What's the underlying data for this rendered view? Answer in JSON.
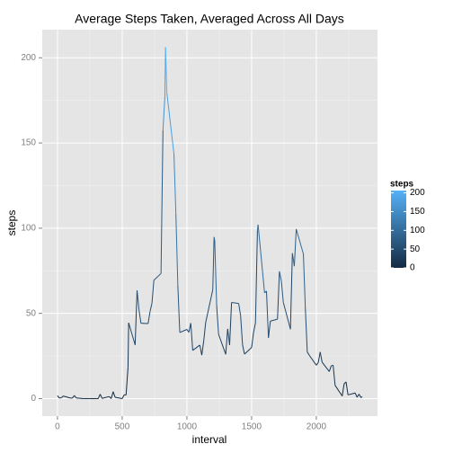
{
  "chart_data": {
    "type": "line",
    "title": "Average Steps Taken, Averaged Across All Days",
    "x_label": "interval",
    "y_label": "steps",
    "x": [
      0,
      15,
      30,
      45,
      100,
      115,
      130,
      145,
      200,
      215,
      230,
      245,
      300,
      315,
      330,
      345,
      400,
      415,
      430,
      445,
      500,
      515,
      530,
      545,
      550,
      600,
      615,
      630,
      645,
      700,
      715,
      730,
      745,
      800,
      815,
      830,
      835,
      845,
      900,
      915,
      930,
      945,
      1000,
      1015,
      1030,
      1045,
      1100,
      1115,
      1130,
      1145,
      1200,
      1210,
      1215,
      1230,
      1245,
      1300,
      1315,
      1330,
      1345,
      1400,
      1415,
      1430,
      1445,
      1500,
      1515,
      1530,
      1545,
      1550,
      1600,
      1615,
      1630,
      1645,
      1700,
      1715,
      1730,
      1745,
      1800,
      1815,
      1830,
      1845,
      1900,
      1915,
      1930,
      1945,
      2000,
      2015,
      2030,
      2045,
      2100,
      2115,
      2130,
      2145,
      2200,
      2215,
      2230,
      2245,
      2300,
      2315,
      2330,
      2345,
      2355
    ],
    "values": [
      1.7,
      0.3,
      0.5,
      1.5,
      0.3,
      0.3,
      1.8,
      0.4,
      0,
      0,
      0,
      0,
      0,
      0,
      2.6,
      0.1,
      1.2,
      0,
      4.1,
      0.8,
      0,
      2.2,
      2.1,
      18.3,
      44.5,
      31.5,
      63.5,
      52,
      44.2,
      44,
      51,
      56,
      69.5,
      73.4,
      157.5,
      177.3,
      206.2,
      179.6,
      143.5,
      108.1,
      66.2,
      38.8,
      40.6,
      38.9,
      44.3,
      28.3,
      31.4,
      25.5,
      33.8,
      44.6,
      63.9,
      94.8,
      92.8,
      54.5,
      37.7,
      26,
      40.9,
      31.4,
      56.4,
      55.8,
      48.7,
      31.5,
      26.1,
      30,
      38.8,
      44.5,
      98.7,
      102.1,
      62.1,
      63.1,
      35.7,
      45.5,
      46.6,
      74.7,
      68.9,
      56.5,
      40.7,
      85.3,
      77.7,
      99.5,
      84.9,
      53.4,
      27.4,
      25.5,
      19.6,
      21.2,
      27.3,
      21.3,
      15.9,
      19.2,
      19.6,
      7.8,
      1.5,
      8.7,
      9.8,
      2.2,
      3.3,
      0.8,
      2.6,
      0.6,
      1.1
    ],
    "xlim": [
      -117.75,
      2472.75
    ],
    "xticks": [
      0,
      500,
      1000,
      1500,
      2000
    ],
    "ylim": [
      -10.3,
      216.5
    ],
    "yticks": [
      0,
      50,
      100,
      150,
      200
    ],
    "grid": true,
    "legend": {
      "title": "steps",
      "position": "right",
      "color_low": "#132B43",
      "color_high": "#56B1F7",
      "colorlim": [
        0,
        206.2
      ],
      "ticks": [
        0,
        50,
        100,
        150,
        200
      ]
    }
  }
}
